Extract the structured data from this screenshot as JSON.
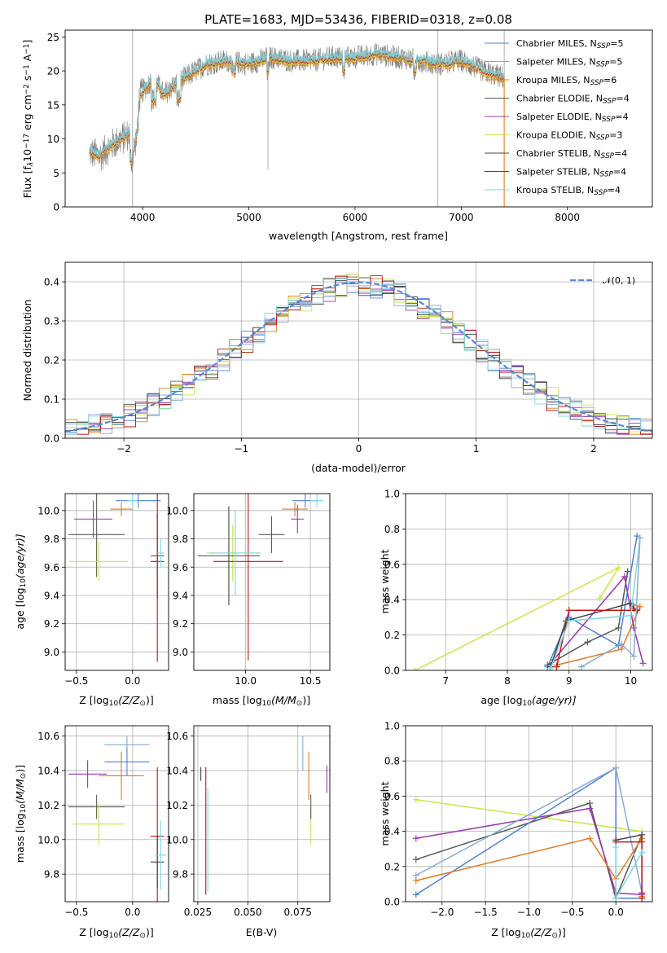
{
  "series_meta": [
    {
      "label": "Chabrier MILES, N",
      "sub": "SSP",
      "tail": "=5",
      "color": "#4f7fdc"
    },
    {
      "label": "Salpeter MILES, N",
      "sub": "SSP",
      "tail": "=5",
      "color": "#8aaad5"
    },
    {
      "label": "Kroupa MILES, N",
      "sub": "SSP",
      "tail": "=6",
      "color": "#e07b22"
    },
    {
      "label": "Chabrier ELODIE, N",
      "sub": "SSP",
      "tail": "=4",
      "color": "#555e55"
    },
    {
      "label": "Salpeter ELODIE, N",
      "sub": "SSP",
      "tail": "=4",
      "color": "#9a35b0"
    },
    {
      "label": "Kroupa ELODIE, N",
      "sub": "SSP",
      "tail": "=3",
      "color": "#c9e64a"
    },
    {
      "label": "Chabrier STELIB, N",
      "sub": "SSP",
      "tail": "=4",
      "color": "#444444"
    },
    {
      "label": "Salpeter STELIB, N",
      "sub": "SSP",
      "tail": "=4",
      "color": "#c01818"
    },
    {
      "label": "Kroupa STELIB, N",
      "sub": "SSP",
      "tail": "=4",
      "color": "#7fd9de"
    }
  ],
  "chart_data": [
    {
      "id": "spectrum",
      "type": "line",
      "title": "PLATE=1683, MJD=53436, FIBERID=0318, z=0.08",
      "xlabel": "wavelength [Angstrom, rest frame]",
      "ylabel": "Flux [f",
      "ylabel_sub": "λ",
      "ylabel_tail": "10",
      "ylabel_exp": "−17",
      "ylabel_units": " erg cm",
      "ylabel_exp2": "−2",
      "ylabel_units2": " s",
      "ylabel_exp3": "−1",
      "ylabel_units3": " A",
      "ylabel_exp4": "−1",
      "ylabel_end": "]",
      "xlim": [
        3270,
        8800
      ],
      "ylim": [
        0,
        26
      ],
      "xticks": [
        4000,
        5000,
        6000,
        7000,
        8000
      ],
      "yticks": [
        0,
        5,
        10,
        15,
        20,
        25
      ],
      "data_color": "#808080",
      "model_color": "#7fd9de",
      "spectrum_anchors": {
        "x": [
          3500,
          3600,
          3700,
          3800,
          3900,
          3950,
          4000,
          4100,
          4200,
          4300,
          4400,
          4500,
          4600,
          4800,
          5000,
          5200,
          5400,
          5600,
          5800,
          6000,
          6200,
          6400,
          6600,
          6800,
          7000,
          7200,
          7400
        ],
        "y": [
          8,
          7.5,
          9,
          10,
          11,
          15,
          17,
          19,
          16.5,
          18,
          19,
          20,
          21,
          21.5,
          21,
          22,
          21.5,
          21.5,
          22,
          22,
          22.5,
          22,
          21.5,
          21,
          21.5,
          20,
          19
        ]
      },
      "spike_x": [
        3905,
        5180,
        6780,
        7405
      ]
    },
    {
      "id": "residuals",
      "type": "bar",
      "xlabel": "(data-model)/error",
      "ylabel": "Normed distribution",
      "xlim": [
        -2.5,
        2.5
      ],
      "ylim": [
        0,
        0.45
      ],
      "xticks": [
        -2,
        -1,
        0,
        1,
        2
      ],
      "yticks": [
        0.0,
        0.1,
        0.2,
        0.3,
        0.4
      ],
      "bin_width": 0.1,
      "legend": "𝒩(0, 1)",
      "normal_color": "#5b86d6"
    },
    {
      "id": "age_vs_Z",
      "type": "scatter",
      "xlabel": "Z [log",
      "xlabel_sub": "10",
      "xlabel_tail": "(Z/Z",
      "xlabel_sub2": "⊙",
      "xlabel_end": ")]",
      "ylabel": "age  [log",
      "ylabel_sub": "10",
      "ylabel_tail": "(age/yr)]",
      "xlim": [
        -0.6,
        0.32
      ],
      "ylim": [
        8.87,
        10.12
      ],
      "xticks": [
        -0.5,
        0.0
      ],
      "yticks": [
        9.0,
        9.2,
        9.4,
        9.6,
        9.8,
        10.0
      ],
      "points": [
        {
          "x": 0.05,
          "y": 10.07,
          "xerr": 0.2,
          "yerr": 0.05,
          "c": 0
        },
        {
          "x": 0.0,
          "y": 10.07,
          "xerr": 0.05,
          "yerr": 0.05,
          "c": 8
        },
        {
          "x": -0.1,
          "y": 10.01,
          "xerr": 0.1,
          "yerr": 0.05,
          "c": 2
        },
        {
          "x": -0.32,
          "y": 9.83,
          "xerr": 0.25,
          "yerr": 0.3,
          "c": 3
        },
        {
          "x": -0.35,
          "y": 9.94,
          "xerr": 0.17,
          "yerr": 0.13,
          "c": 4
        },
        {
          "x": -0.3,
          "y": 9.64,
          "xerr": 0.26,
          "yerr": 0.14,
          "c": 5
        },
        {
          "x": 0.22,
          "y": 9.68,
          "xerr": 0.06,
          "yerr": 0.3,
          "c": 6
        },
        {
          "x": 0.22,
          "y": 9.64,
          "xerr": 0.06,
          "yerr": 0.71,
          "c": 7
        },
        {
          "x": 0.25,
          "y": 9.7,
          "xerr": 0.03,
          "yerr": 0.1,
          "c": 8
        }
      ]
    },
    {
      "id": "age_vs_mass",
      "type": "scatter",
      "xlabel": "mass [log",
      "xlabel_sub": "10",
      "xlabel_tail": "(M/M",
      "xlabel_sub2": "⊙",
      "xlabel_end": ")]",
      "xlim": [
        9.6,
        10.65
      ],
      "ylim": [
        8.87,
        10.12
      ],
      "xticks": [
        10.0,
        10.5
      ],
      "yticks": [
        9.0,
        9.2,
        9.4,
        9.6,
        9.8,
        10.0
      ],
      "points": [
        {
          "x": 10.46,
          "y": 10.07,
          "xerr": 0.1,
          "yerr": 0.05,
          "c": 0
        },
        {
          "x": 10.55,
          "y": 10.07,
          "xerr": 0.05,
          "yerr": 0.05,
          "c": 8
        },
        {
          "x": 10.38,
          "y": 10.01,
          "xerr": 0.1,
          "yerr": 0.05,
          "c": 2
        },
        {
          "x": 10.2,
          "y": 9.83,
          "xerr": 0.1,
          "yerr": 0.13,
          "c": 3
        },
        {
          "x": 10.4,
          "y": 9.94,
          "xerr": 0.05,
          "yerr": 0.1,
          "c": 4
        },
        {
          "x": 9.9,
          "y": 9.7,
          "xerr": 0.2,
          "yerr": 0.2,
          "c": 5
        },
        {
          "x": 9.87,
          "y": 9.68,
          "xerr": 0.24,
          "yerr": 0.35,
          "c": 6
        },
        {
          "x": 10.02,
          "y": 9.64,
          "xerr": 0.27,
          "yerr": 0.7,
          "c": 7
        },
        {
          "x": 9.92,
          "y": 9.7,
          "xerr": 0.2,
          "yerr": 0.3,
          "c": 8
        }
      ]
    },
    {
      "id": "weight_vs_age",
      "type": "line",
      "xlabel": "age  [log",
      "xlabel_sub": "10",
      "xlabel_tail": "(age/yr)]",
      "ylabel": "mass weight",
      "xlim": [
        6.35,
        10.35
      ],
      "ylim": [
        0,
        1.0
      ],
      "xticks": [
        7,
        8,
        9,
        10
      ],
      "yticks": [
        0.0,
        0.2,
        0.4,
        0.6,
        0.8,
        1.0
      ],
      "series": [
        {
          "c": 0,
          "x": [
            8.65,
            9.0,
            9.8,
            10.1
          ],
          "y": [
            0.02,
            0.3,
            0.14,
            0.76
          ]
        },
        {
          "c": 2,
          "x": [
            8.8,
            9.85,
            10.15,
            10.0
          ],
          "y": [
            0.03,
            0.12,
            0.36,
            0.38
          ]
        },
        {
          "c": 3,
          "x": [
            8.65,
            9.3,
            9.8,
            9.95
          ],
          "y": [
            0.03,
            0.16,
            0.24,
            0.56
          ]
        },
        {
          "c": 4,
          "x": [
            8.75,
            9.9,
            10.05,
            10.2
          ],
          "y": [
            0.06,
            0.53,
            0.24,
            0.04
          ]
        },
        {
          "c": 5,
          "x": [
            6.5,
            9.8,
            9.5
          ],
          "y": [
            0.0,
            0.58,
            0.41
          ]
        },
        {
          "c": 6,
          "x": [
            8.7,
            8.95,
            10.0,
            10.05
          ],
          "y": [
            0.02,
            0.28,
            0.38,
            0.35
          ]
        },
        {
          "c": 7,
          "x": [
            8.8,
            9.0,
            10.1,
            10.05
          ],
          "y": [
            0.02,
            0.34,
            0.34,
            0.35
          ]
        },
        {
          "c": 8,
          "x": [
            8.7,
            9.0,
            10.0,
            10.15
          ],
          "y": [
            0.01,
            0.28,
            0.31,
            0.75
          ]
        },
        {
          "c": 1,
          "x": [
            9.2,
            9.85,
            10.05,
            10.15
          ],
          "y": [
            0.02,
            0.15,
            0.08,
            0.75
          ]
        }
      ]
    },
    {
      "id": "mass_vs_Z",
      "type": "scatter",
      "xlabel": "Z [log",
      "xlabel_sub": "10",
      "xlabel_tail": "(Z/Z",
      "xlabel_sub2": "⊙",
      "xlabel_end": ")]",
      "ylabel": "mass [log",
      "ylabel_sub": "10",
      "ylabel_tail": "(M/M",
      "ylabel_sub2": "⊙",
      "ylabel_end": ")]",
      "xlim": [
        -0.6,
        0.32
      ],
      "ylim": [
        9.64,
        10.66
      ],
      "xticks": [
        -0.5,
        0.0
      ],
      "yticks": [
        9.8,
        10.0,
        10.2,
        10.4,
        10.6
      ],
      "points": [
        {
          "x": -0.05,
          "y": 10.55,
          "xerr": 0.2,
          "yerr": 0.05,
          "c": 1
        },
        {
          "x": -0.05,
          "y": 10.45,
          "xerr": 0.2,
          "yerr": 0.08,
          "c": 0
        },
        {
          "x": -0.1,
          "y": 10.37,
          "xerr": 0.2,
          "yerr": 0.14,
          "c": 2
        },
        {
          "x": -0.4,
          "y": 10.38,
          "xerr": 0.17,
          "yerr": 0.08,
          "c": 4
        },
        {
          "x": -0.32,
          "y": 10.19,
          "xerr": 0.25,
          "yerr": 0.07,
          "c": 3
        },
        {
          "x": -0.3,
          "y": 10.09,
          "xerr": 0.23,
          "yerr": 0.12,
          "c": 5
        },
        {
          "x": 0.22,
          "y": 10.02,
          "xerr": 0.06,
          "yerr": 0.4,
          "c": 7
        },
        {
          "x": 0.22,
          "y": 9.87,
          "xerr": 0.06,
          "yerr": 0.15,
          "c": 6
        },
        {
          "x": 0.25,
          "y": 9.91,
          "xerr": 0.05,
          "yerr": 0.2,
          "c": 8
        }
      ]
    },
    {
      "id": "mass_vs_EBV",
      "type": "scatter",
      "xlabel": "E(B-V)",
      "xlim": [
        0.023,
        0.091
      ],
      "ylim": [
        9.64,
        10.66
      ],
      "xticks": [
        0.025,
        0.05,
        0.075
      ],
      "xtick_labels": [
        "0.025",
        "0.050",
        "0.075"
      ],
      "yticks": [
        9.8,
        10.0,
        10.2,
        10.4,
        10.6
      ],
      "points": [
        {
          "x": 0.0265,
          "y": 10.38,
          "xerr": 0,
          "yerr": 0.04,
          "c": 6
        },
        {
          "x": 0.029,
          "y": 10.05,
          "xerr": 0,
          "yerr": 0.37,
          "c": 7
        },
        {
          "x": 0.03,
          "y": 10.0,
          "xerr": 0,
          "yerr": 0.3,
          "c": 8
        },
        {
          "x": 0.0775,
          "y": 10.5,
          "xerr": 0,
          "yerr": 0.1,
          "c": 1
        },
        {
          "x": 0.0805,
          "y": 10.37,
          "xerr": 0,
          "yerr": 0.14,
          "c": 2
        },
        {
          "x": 0.0815,
          "y": 10.09,
          "xerr": 0,
          "yerr": 0.12,
          "c": 5
        },
        {
          "x": 0.0815,
          "y": 10.19,
          "xerr": 0,
          "yerr": 0.07,
          "c": 3
        },
        {
          "x": 0.0895,
          "y": 10.35,
          "xerr": 0,
          "yerr": 0.08,
          "c": 4
        }
      ]
    },
    {
      "id": "weight_vs_Z",
      "type": "line",
      "xlabel": "Z [log",
      "xlabel_sub": "10",
      "xlabel_tail": "(Z/Z",
      "xlabel_sub2": "⊙",
      "xlabel_end": ")]",
      "ylabel": "mass weight",
      "xlim": [
        -2.42,
        0.42
      ],
      "ylim": [
        0,
        1.0
      ],
      "xticks": [
        -2.0,
        -1.5,
        -1.0,
        -0.5,
        0.0
      ],
      "yticks": [
        0.0,
        0.2,
        0.4,
        0.6,
        0.8,
        1.0
      ],
      "series": [
        {
          "c": 5,
          "x": [
            -2.3,
            0.0,
            0.3
          ],
          "y": [
            0.58,
            0.42,
            0.4
          ]
        },
        {
          "c": 3,
          "x": [
            -2.3,
            -0.3,
            0.0,
            0.3
          ],
          "y": [
            0.24,
            0.56,
            0.02,
            0.38
          ]
        },
        {
          "c": 4,
          "x": [
            -2.3,
            -0.3,
            0.0,
            0.3
          ],
          "y": [
            0.36,
            0.53,
            0.05,
            0.04
          ]
        },
        {
          "c": 0,
          "x": [
            -2.3,
            0.0,
            0.0,
            0.3
          ],
          "y": [
            0.04,
            0.76,
            0.02,
            0.02
          ]
        },
        {
          "c": 1,
          "x": [
            -2.3,
            0.0,
            0.3,
            0.3
          ],
          "y": [
            0.15,
            0.76,
            0.05,
            0.03
          ]
        },
        {
          "c": 2,
          "x": [
            -2.3,
            -0.3,
            0.0,
            0.3,
            0.3
          ],
          "y": [
            0.12,
            0.36,
            0.13,
            0.36,
            0.03
          ]
        },
        {
          "c": 6,
          "x": [
            0.0,
            0.3,
            0.3
          ],
          "y": [
            0.35,
            0.38,
            0.05
          ]
        },
        {
          "c": 7,
          "x": [
            0.0,
            0.3,
            0.3
          ],
          "y": [
            0.34,
            0.34,
            0.02
          ]
        },
        {
          "c": 8,
          "x": [
            0.0,
            0.0,
            0.3
          ],
          "y": [
            0.31,
            0.02,
            0.28
          ]
        }
      ]
    }
  ]
}
